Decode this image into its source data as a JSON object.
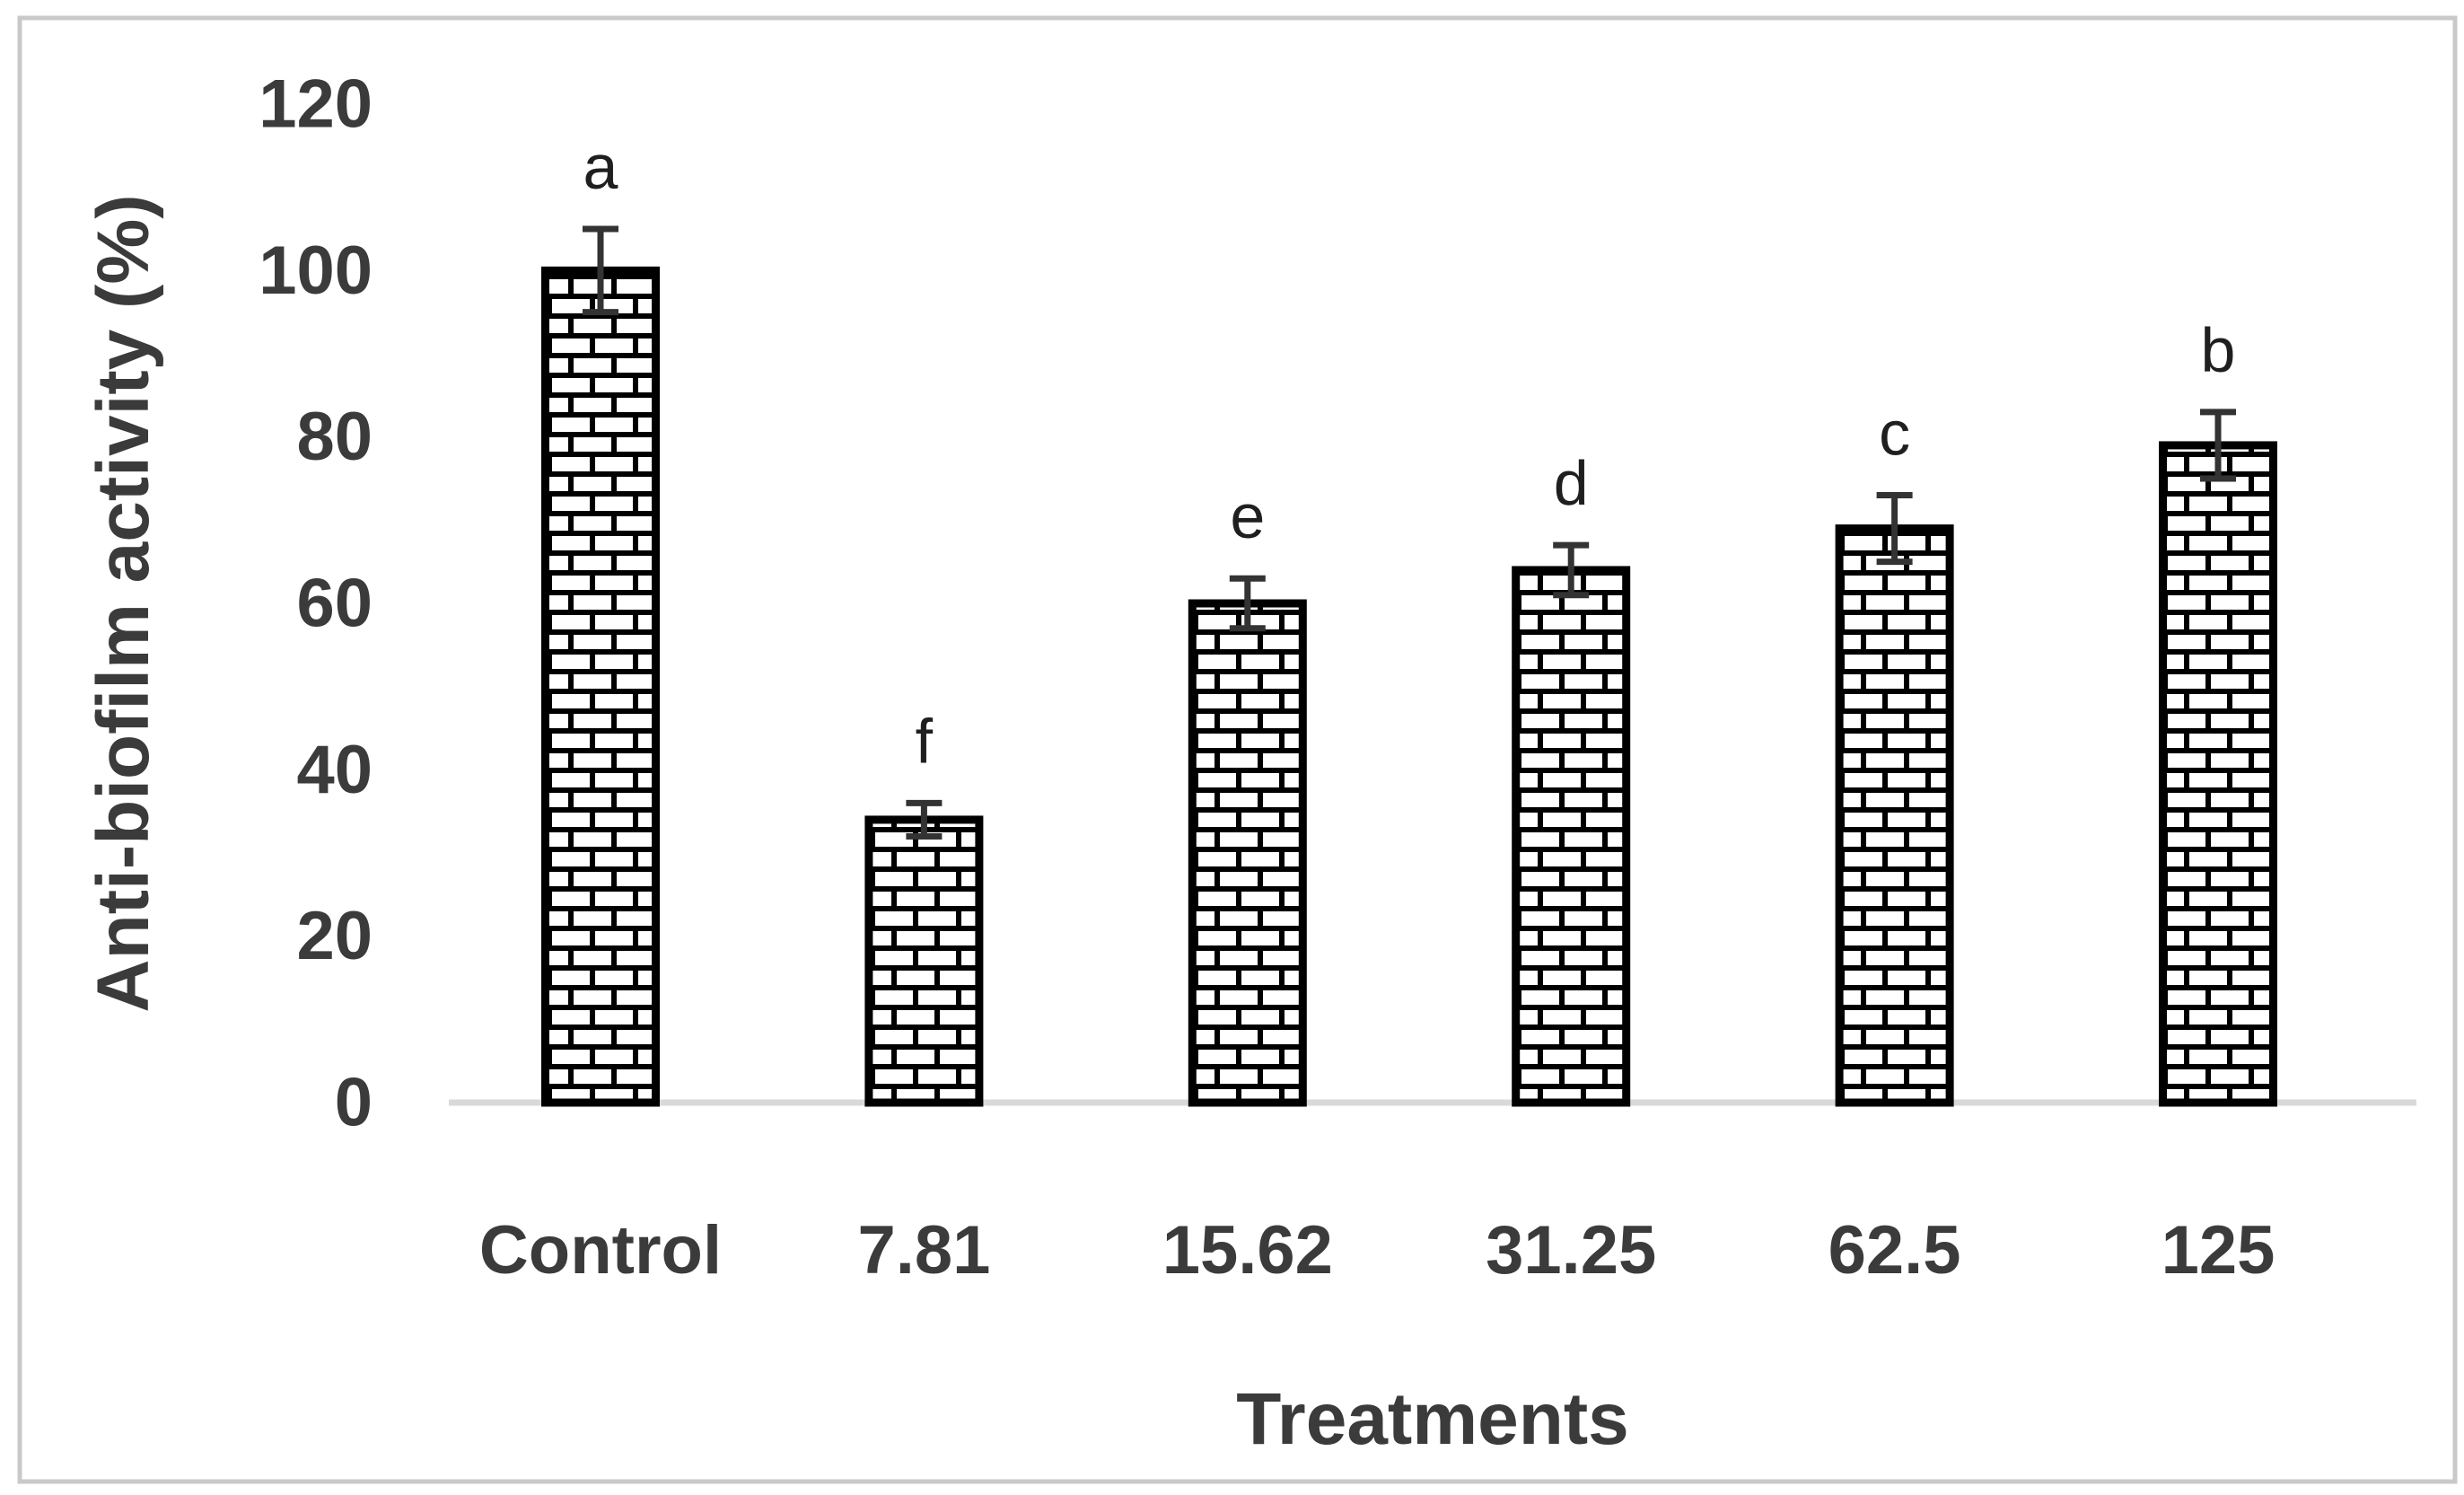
{
  "figure": {
    "background": "#ffffff",
    "border_color": "#c9c9c9",
    "plot_baseline_color": "#d9d9d9"
  },
  "chart_data": {
    "type": "bar",
    "title": "",
    "xlabel": "Treatments",
    "ylabel": "Anti-biofilm activity (%)",
    "categories": [
      "Control",
      "7.81",
      "15.62",
      "31.25",
      "62.5",
      "125"
    ],
    "values": [
      100,
      34,
      60,
      64,
      69,
      79
    ],
    "error_bars": [
      5,
      2,
      3,
      3,
      4,
      4
    ],
    "significance_letters": [
      "a",
      "f",
      "e",
      "d",
      "c",
      "b"
    ],
    "ylim": [
      0,
      120
    ],
    "yticks": [
      0,
      20,
      40,
      60,
      80,
      100,
      120
    ],
    "grid": false,
    "legend_position": "none",
    "bar_fill_style": "brick-pattern",
    "bar_outline_color": "#000000",
    "brick_line_color": "#000000",
    "bar_background_color": "#ffffff",
    "error_bar_color": "#333333",
    "tick_text_color": "#3b3b3b",
    "axis_title_color": "#3b3b3b",
    "letter_text_color": "#1f1f1f"
  }
}
